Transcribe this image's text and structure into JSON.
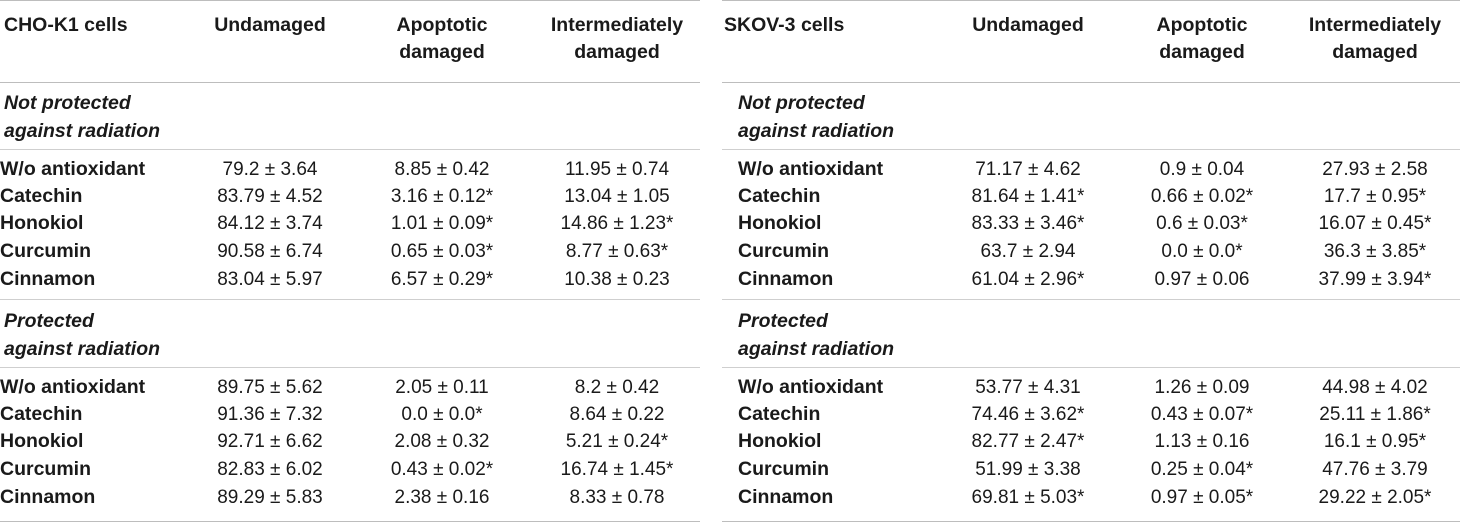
{
  "left": {
    "title": "CHO-K1 cells",
    "columns": [
      "Undamaged",
      "Apoptotic damaged",
      "Intermediately damaged"
    ],
    "sections": [
      {
        "label_line1": "Not protected",
        "label_line2": "against radiation",
        "rows": [
          {
            "label": "W/o antioxidant",
            "values": [
              "79.2 ± 3.64",
              "8.85 ± 0.42",
              "11.95 ± 0.74"
            ]
          },
          {
            "label": "Catechin",
            "values": [
              "83.79 ± 4.52",
              "3.16 ± 0.12*",
              "13.04 ± 1.05"
            ]
          },
          {
            "label": "Honokiol",
            "values": [
              "84.12 ± 3.74",
              "1.01 ± 0.09*",
              "14.86 ± 1.23*"
            ]
          },
          {
            "label": "Curcumin",
            "values": [
              "90.58 ± 6.74",
              "0.65 ± 0.03*",
              "8.77 ± 0.63*"
            ]
          },
          {
            "label": "Cinnamon",
            "values": [
              "83.04 ± 5.97",
              "6.57 ± 0.29*",
              "10.38 ± 0.23"
            ]
          }
        ]
      },
      {
        "label_line1": "Protected",
        "label_line2": "against radiation",
        "rows": [
          {
            "label": "W/o antioxidant",
            "values": [
              "89.75 ± 5.62",
              "2.05 ± 0.11",
              "8.2 ± 0.42"
            ]
          },
          {
            "label": "Catechin",
            "values": [
              "91.36 ± 7.32",
              "0.0 ± 0.0*",
              "8.64 ± 0.22"
            ]
          },
          {
            "label": "Honokiol",
            "values": [
              "92.71 ± 6.62",
              "2.08 ± 0.32",
              "5.21 ± 0.24*"
            ]
          },
          {
            "label": "Curcumin",
            "values": [
              "82.83 ± 6.02",
              "0.43 ± 0.02*",
              "16.74 ± 1.45*"
            ]
          },
          {
            "label": "Cinnamon",
            "values": [
              "89.29 ± 5.83",
              "2.38 ± 0.16",
              "8.33 ± 0.78"
            ]
          }
        ]
      }
    ]
  },
  "right": {
    "title": "SKOV-3 cells",
    "columns": [
      "Undamaged",
      "Apoptotic damaged",
      "Intermediately damaged"
    ],
    "sections": [
      {
        "label_line1": "Not protected",
        "label_line2": "against radiation",
        "rows": [
          {
            "label": "W/o antioxidant",
            "values": [
              "71.17 ± 4.62",
              "0.9 ± 0.04",
              "27.93 ± 2.58"
            ]
          },
          {
            "label": "Catechin",
            "values": [
              "81.64 ± 1.41*",
              "0.66 ± 0.02*",
              "17.7 ± 0.95*"
            ]
          },
          {
            "label": "Honokiol",
            "values": [
              "83.33 ± 3.46*",
              "0.6 ± 0.03*",
              "16.07 ± 0.45*"
            ]
          },
          {
            "label": "Curcumin",
            "values": [
              "63.7 ± 2.94",
              "0.0 ± 0.0*",
              "36.3 ± 3.85*"
            ]
          },
          {
            "label": "Cinnamon",
            "values": [
              "61.04 ± 2.96*",
              "0.97 ± 0.06",
              "37.99 ± 3.94*"
            ]
          }
        ]
      },
      {
        "label_line1": "Protected",
        "label_line2": "against radiation",
        "rows": [
          {
            "label": "W/o antioxidant",
            "values": [
              "53.77 ± 4.31",
              "1.26 ± 0.09",
              "44.98 ± 4.02"
            ]
          },
          {
            "label": "Catechin",
            "values": [
              "74.46 ± 3.62*",
              "0.43 ± 0.07*",
              "25.11 ± 1.86*"
            ]
          },
          {
            "label": "Honokiol",
            "values": [
              "82.77 ± 2.47*",
              "1.13 ± 0.16",
              "16.1 ± 0.95*"
            ]
          },
          {
            "label": "Curcumin",
            "values": [
              "51.99 ± 3.38",
              "0.25 ± 0.04*",
              "47.76 ± 3.79"
            ]
          },
          {
            "label": "Cinnamon",
            "values": [
              "69.81 ± 5.03*",
              "0.97 ± 0.05*",
              "29.22 ± 2.05*"
            ]
          }
        ]
      }
    ]
  }
}
